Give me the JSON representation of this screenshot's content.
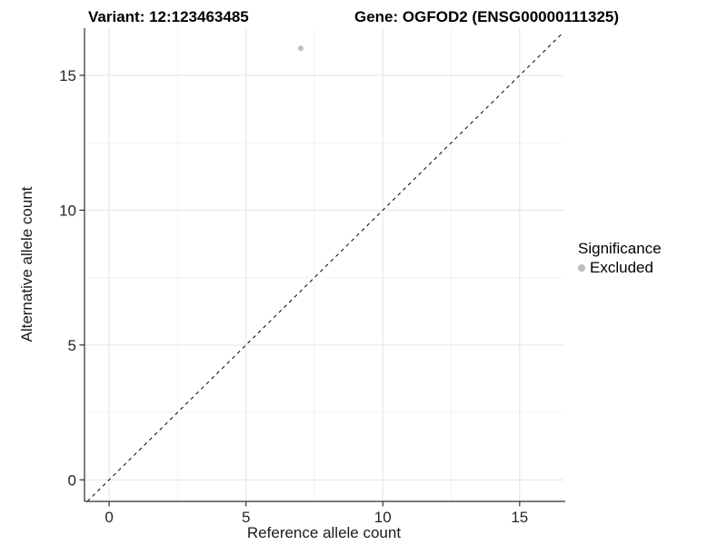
{
  "chart_data": {
    "type": "scatter",
    "titles": {
      "variant": "Variant: 12:123463485",
      "gene": "Gene: OGFOD2 (ENSG00000111325)"
    },
    "xlabel": "Reference allele count",
    "ylabel": "Alternative allele count",
    "xlim": [
      -0.9,
      16.6
    ],
    "ylim": [
      -0.8,
      16.75
    ],
    "x_ticks": [
      0,
      5,
      10,
      15
    ],
    "y_ticks": [
      0,
      5,
      10,
      15
    ],
    "x_minor_ticks": [
      2.5,
      7.5,
      12.5
    ],
    "y_minor_ticks": [
      2.5,
      7.5,
      12.5
    ],
    "grid": "on",
    "points": [
      {
        "x": 7,
        "y": 16,
        "series": "Excluded"
      }
    ],
    "identity_line": {
      "slope": 1,
      "intercept": 0,
      "style": "dashed",
      "color": "#000000"
    },
    "legend": {
      "title": "Significance",
      "position": "right",
      "entries": [
        {
          "label": "Excluded",
          "color": "#bdbdbd",
          "marker": "circle"
        }
      ]
    },
    "colors": {
      "point": "#bdbdbd",
      "grid_major": "#e4e4e4",
      "grid_minor": "#f1f1f1",
      "axis": "#2f2f2f",
      "tick_label": "#262626"
    }
  }
}
